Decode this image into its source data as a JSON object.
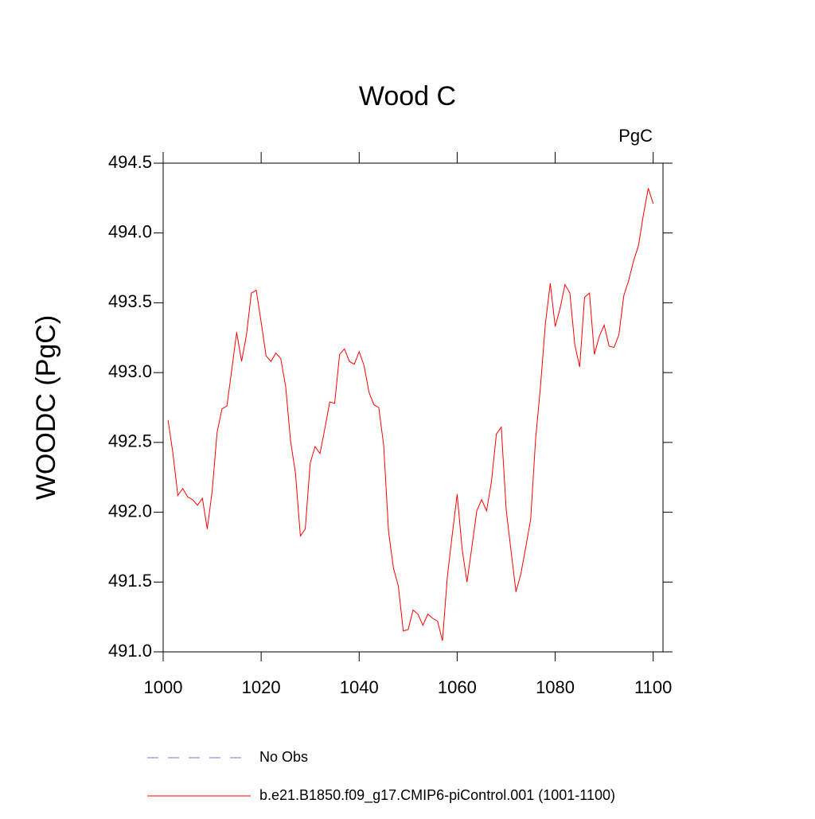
{
  "chart_data": {
    "type": "line",
    "title": "Wood C",
    "unit_label": "PgC",
    "y_label": "WOODC  (PgC)",
    "x": [
      1001,
      1002,
      1003,
      1004,
      1005,
      1006,
      1007,
      1008,
      1009,
      1010,
      1011,
      1012,
      1013,
      1014,
      1015,
      1016,
      1017,
      1018,
      1019,
      1020,
      1021,
      1022,
      1023,
      1024,
      1025,
      1026,
      1027,
      1028,
      1029,
      1030,
      1031,
      1032,
      1033,
      1034,
      1035,
      1036,
      1037,
      1038,
      1039,
      1040,
      1041,
      1042,
      1043,
      1044,
      1045,
      1046,
      1047,
      1048,
      1049,
      1050,
      1051,
      1052,
      1053,
      1054,
      1055,
      1056,
      1057,
      1058,
      1059,
      1060,
      1061,
      1062,
      1063,
      1064,
      1065,
      1066,
      1067,
      1068,
      1069,
      1070,
      1071,
      1072,
      1073,
      1074,
      1075,
      1076,
      1077,
      1078,
      1079,
      1080,
      1081,
      1082,
      1083,
      1084,
      1085,
      1086,
      1087,
      1088,
      1089,
      1090,
      1091,
      1092,
      1093,
      1094,
      1095,
      1096,
      1097,
      1098,
      1099,
      1100
    ],
    "series": [
      {
        "name": "b.e21.B1850.f09_g17.CMIP6-piControl.001 (1001-1100)",
        "color": "#ff0000",
        "values": [
          492.66,
          492.42,
          492.12,
          492.17,
          492.11,
          492.09,
          492.05,
          492.1,
          491.88,
          492.15,
          492.57,
          492.74,
          492.76,
          493.02,
          493.29,
          493.08,
          493.27,
          493.57,
          493.59,
          493.36,
          493.12,
          493.08,
          493.14,
          493.1,
          492.9,
          492.51,
          492.28,
          491.83,
          491.88,
          492.35,
          492.47,
          492.42,
          492.6,
          492.79,
          492.78,
          493.13,
          493.17,
          493.08,
          493.06,
          493.15,
          493.05,
          492.86,
          492.77,
          492.75,
          492.48,
          491.86,
          491.6,
          491.47,
          491.15,
          491.16,
          491.3,
          491.27,
          491.19,
          491.27,
          491.24,
          491.22,
          491.08,
          491.54,
          491.84,
          492.13,
          491.74,
          491.5,
          491.75,
          492.01,
          492.09,
          492.01,
          492.22,
          492.56,
          492.61,
          492.02,
          491.72,
          491.43,
          491.56,
          491.75,
          491.95,
          492.52,
          492.9,
          493.35,
          493.64,
          493.33,
          493.46,
          493.63,
          493.57,
          493.2,
          493.04,
          493.54,
          493.57,
          493.13,
          493.26,
          493.34,
          493.19,
          493.18,
          493.27,
          493.55,
          493.66,
          493.8,
          493.91,
          494.13,
          494.32,
          494.21
        ]
      }
    ],
    "extra_legend": [
      {
        "name": "No Obs",
        "color": "#7777cc",
        "dashed": true
      }
    ],
    "xlim": [
      1000,
      1102
    ],
    "ylim": [
      491,
      494.5
    ],
    "xticks": [
      1000,
      1020,
      1040,
      1060,
      1080,
      1100
    ],
    "yticks": [
      {
        "value": 491,
        "label": "491.0"
      },
      491.5,
      {
        "value": 492,
        "label": "492.0"
      },
      492.5,
      {
        "value": 493,
        "label": "493.0"
      },
      493.5,
      {
        "value": 494,
        "label": "494.0"
      },
      494.5
    ]
  }
}
